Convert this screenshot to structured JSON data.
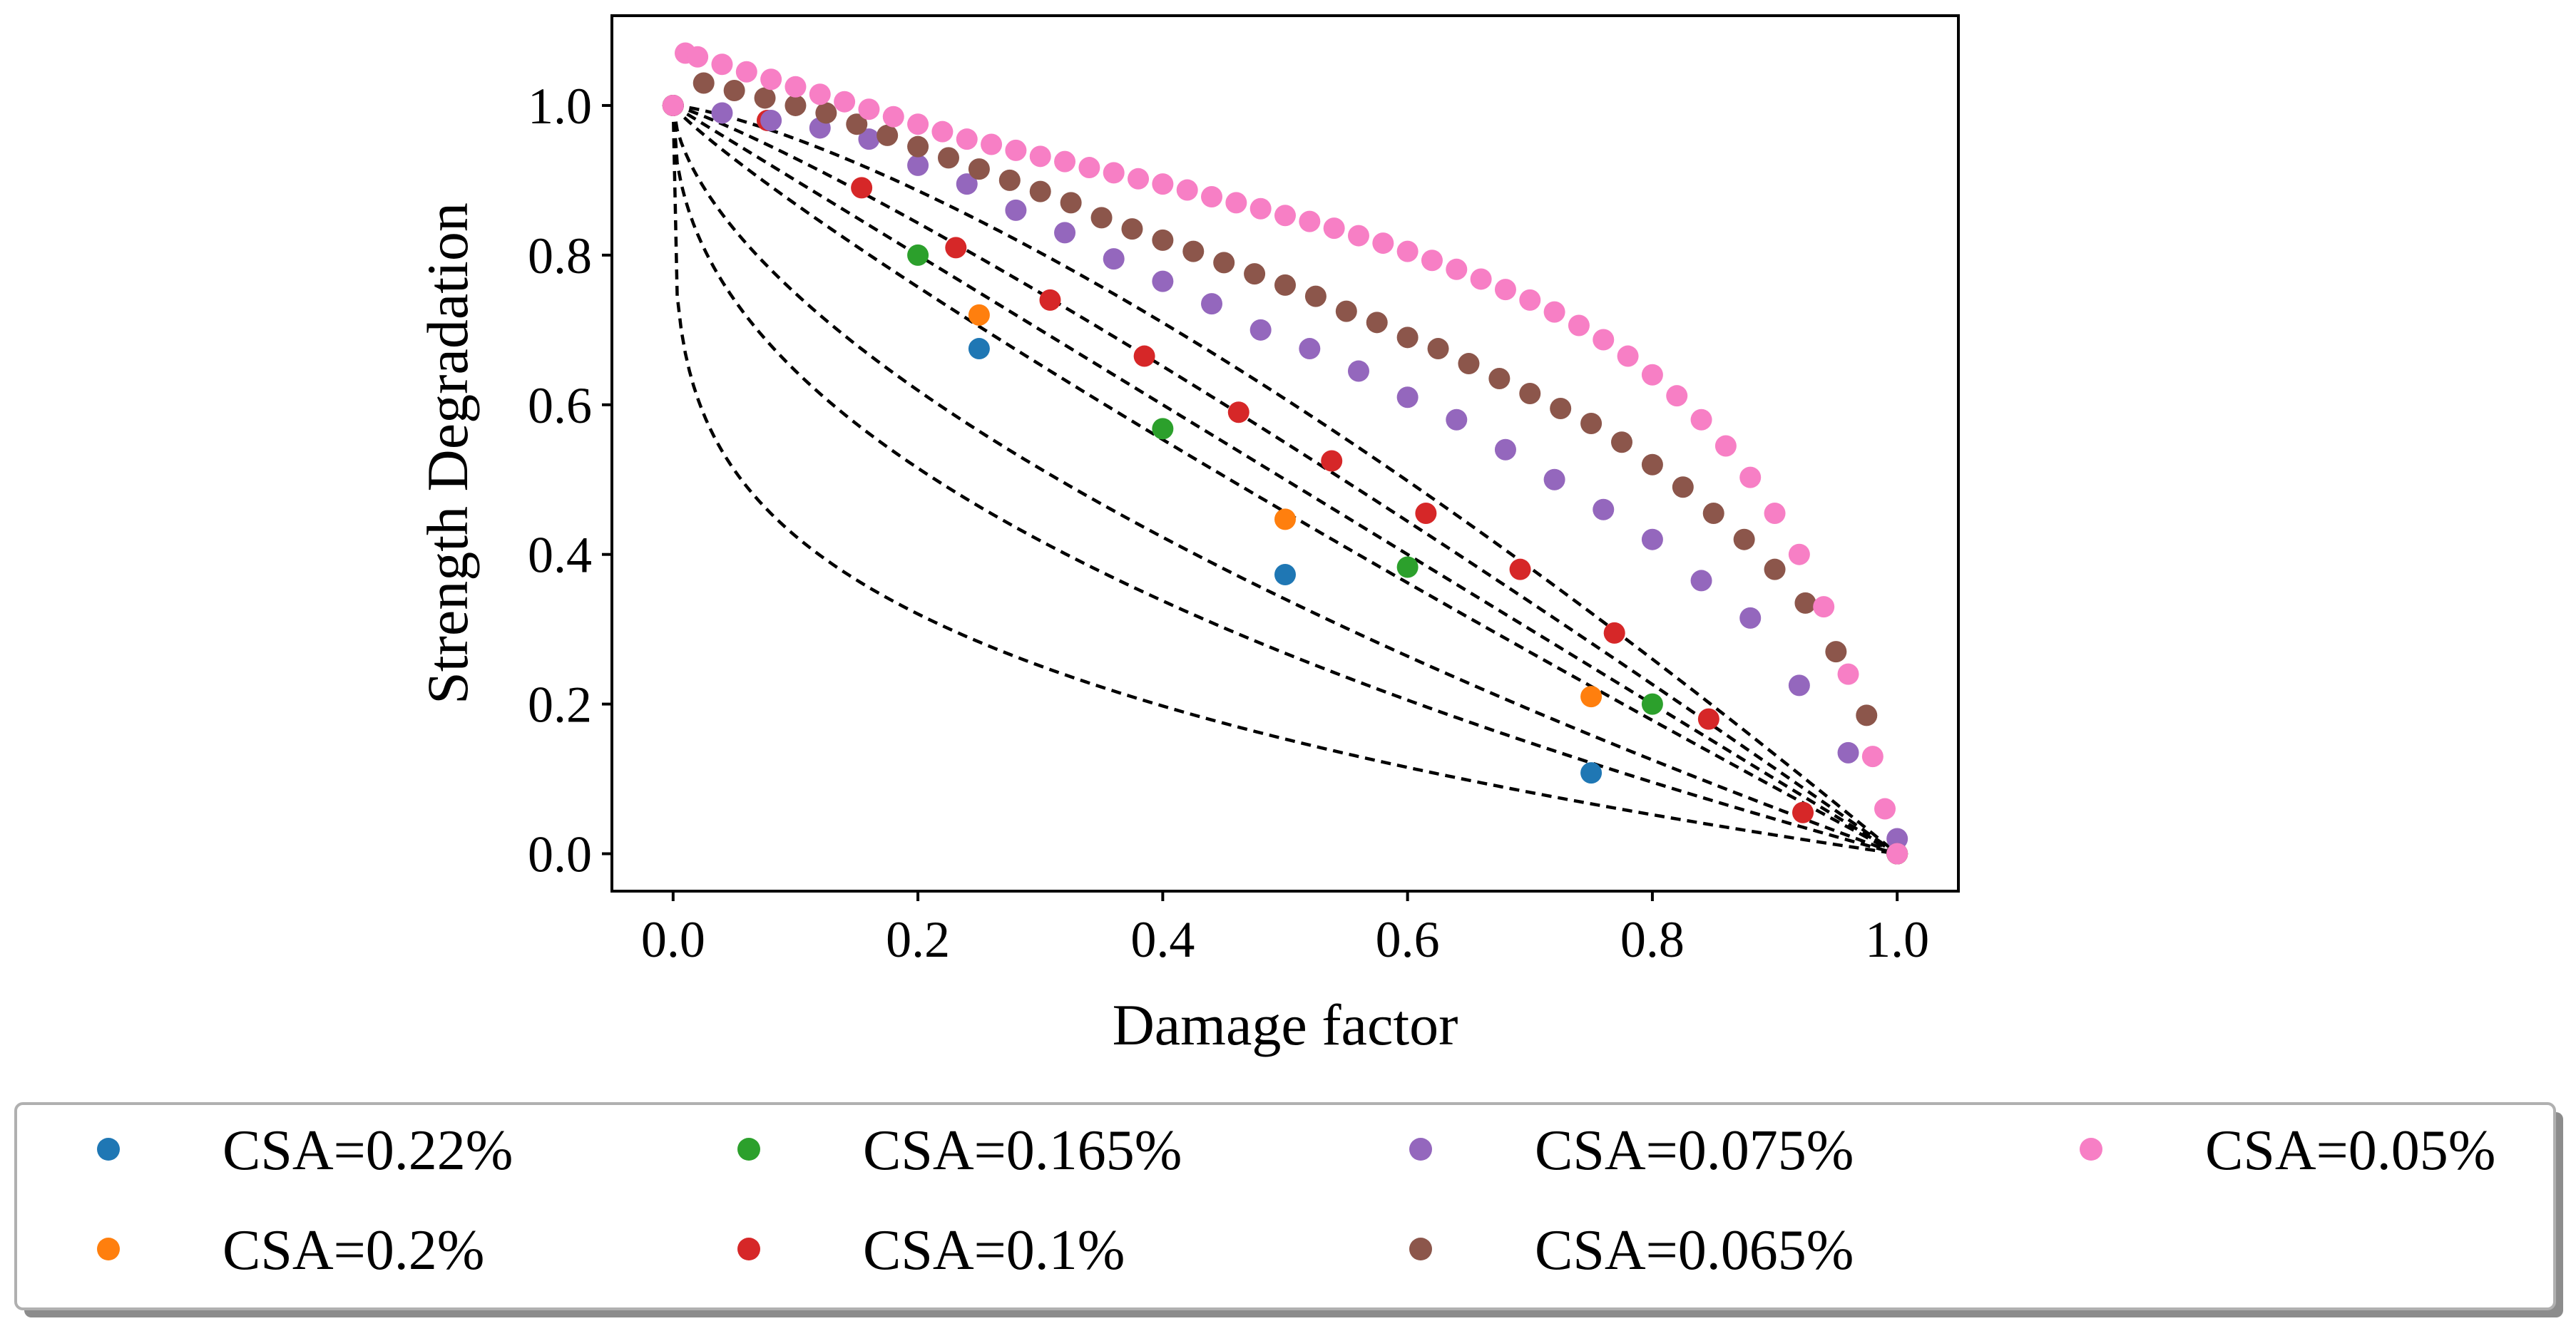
{
  "chart_data": {
    "type": "scatter",
    "title": "",
    "xlabel": "Damage factor",
    "ylabel": "Strength Degradation",
    "xlim": [
      -0.05,
      1.05
    ],
    "ylim": [
      -0.05,
      1.12
    ],
    "xticks": [
      0.0,
      0.2,
      0.4,
      0.6,
      0.8,
      1.0
    ],
    "xtick_labels": [
      "0.0",
      "0.2",
      "0.4",
      "0.6",
      "0.8",
      "1.0"
    ],
    "yticks": [
      0.0,
      0.2,
      0.4,
      0.6,
      0.8,
      1.0
    ],
    "ytick_labels": [
      "0.0",
      "0.2",
      "0.4",
      "0.6",
      "0.8",
      "1.0"
    ],
    "grid": false,
    "legend_position": "bottom",
    "series": [
      {
        "name": "CSA=0.22%",
        "color": "#1f77b4",
        "x": [
          0.0,
          0.25,
          0.5,
          0.75,
          1.0
        ],
        "y": [
          1.0,
          0.675,
          0.373,
          0.108,
          0.0
        ]
      },
      {
        "name": "CSA=0.2%",
        "color": "#ff7f0e",
        "x": [
          0.0,
          0.25,
          0.5,
          0.75,
          1.0
        ],
        "y": [
          1.0,
          0.72,
          0.447,
          0.21,
          0.0
        ]
      },
      {
        "name": "CSA=0.165%",
        "color": "#2ca02c",
        "x": [
          0.0,
          0.2,
          0.4,
          0.6,
          0.8,
          1.0
        ],
        "y": [
          1.0,
          0.8,
          0.568,
          0.383,
          0.2,
          0.0
        ]
      },
      {
        "name": "CSA=0.1%",
        "color": "#d62728",
        "x": [
          0.0,
          0.077,
          0.154,
          0.231,
          0.308,
          0.385,
          0.462,
          0.538,
          0.615,
          0.692,
          0.769,
          0.846,
          0.923,
          1.0
        ],
        "y": [
          1.0,
          0.98,
          0.89,
          0.81,
          0.74,
          0.665,
          0.59,
          0.525,
          0.455,
          0.38,
          0.295,
          0.18,
          0.055,
          0.0
        ]
      },
      {
        "name": "CSA=0.075%",
        "color": "#9467bd",
        "x": [
          0.0,
          0.04,
          0.08,
          0.12,
          0.16,
          0.2,
          0.24,
          0.28,
          0.32,
          0.36,
          0.4,
          0.44,
          0.48,
          0.52,
          0.56,
          0.6,
          0.64,
          0.68,
          0.72,
          0.76,
          0.8,
          0.84,
          0.88,
          0.92,
          0.96,
          1.0
        ],
        "y": [
          1.0,
          0.99,
          0.98,
          0.97,
          0.955,
          0.92,
          0.895,
          0.86,
          0.83,
          0.795,
          0.765,
          0.735,
          0.7,
          0.675,
          0.645,
          0.61,
          0.58,
          0.54,
          0.5,
          0.46,
          0.42,
          0.365,
          0.315,
          0.225,
          0.135,
          0.02
        ]
      },
      {
        "name": "CSA=0.065%",
        "color": "#8c564b",
        "x": [
          0.0,
          0.025,
          0.05,
          0.075,
          0.1,
          0.125,
          0.15,
          0.175,
          0.2,
          0.225,
          0.25,
          0.275,
          0.3,
          0.325,
          0.35,
          0.375,
          0.4,
          0.425,
          0.45,
          0.475,
          0.5,
          0.525,
          0.55,
          0.575,
          0.6,
          0.625,
          0.65,
          0.675,
          0.7,
          0.725,
          0.75,
          0.775,
          0.8,
          0.825,
          0.85,
          0.875,
          0.9,
          0.925,
          0.95,
          0.975,
          1.0
        ],
        "y": [
          1.0,
          1.03,
          1.02,
          1.01,
          1.0,
          0.99,
          0.975,
          0.96,
          0.945,
          0.93,
          0.915,
          0.9,
          0.885,
          0.87,
          0.85,
          0.835,
          0.82,
          0.805,
          0.79,
          0.775,
          0.76,
          0.745,
          0.725,
          0.71,
          0.69,
          0.675,
          0.655,
          0.635,
          0.615,
          0.595,
          0.575,
          0.55,
          0.52,
          0.49,
          0.455,
          0.42,
          0.38,
          0.335,
          0.27,
          0.185,
          0.0
        ]
      },
      {
        "name": "CSA=0.05%",
        "color": "#f77fc5",
        "x": [
          0.0,
          0.01,
          0.02,
          0.04,
          0.06,
          0.08,
          0.1,
          0.12,
          0.14,
          0.16,
          0.18,
          0.2,
          0.22,
          0.24,
          0.26,
          0.28,
          0.3,
          0.32,
          0.34,
          0.36,
          0.38,
          0.4,
          0.42,
          0.44,
          0.46,
          0.48,
          0.5,
          0.52,
          0.54,
          0.56,
          0.58,
          0.6,
          0.62,
          0.64,
          0.66,
          0.68,
          0.7,
          0.72,
          0.74,
          0.76,
          0.78,
          0.8,
          0.82,
          0.84,
          0.86,
          0.88,
          0.9,
          0.92,
          0.94,
          0.96,
          0.98,
          0.99,
          1.0
        ],
        "y": [
          1.0,
          1.07,
          1.065,
          1.055,
          1.045,
          1.035,
          1.025,
          1.015,
          1.005,
          0.995,
          0.985,
          0.975,
          0.965,
          0.955,
          0.948,
          0.94,
          0.932,
          0.925,
          0.917,
          0.91,
          0.902,
          0.895,
          0.887,
          0.878,
          0.87,
          0.862,
          0.853,
          0.845,
          0.836,
          0.826,
          0.816,
          0.805,
          0.793,
          0.781,
          0.768,
          0.754,
          0.74,
          0.724,
          0.706,
          0.687,
          0.665,
          0.64,
          0.612,
          0.58,
          0.545,
          0.503,
          0.455,
          0.4,
          0.33,
          0.24,
          0.13,
          0.06,
          0.0
        ]
      }
    ],
    "fit_curves": {
      "style": "dashed",
      "color": "#000000",
      "x_start": 0.0,
      "y_start": 1.0,
      "x_end": 1.0,
      "y_end": 0.0,
      "exponents": [
        1.35,
        1.15,
        1.0,
        0.88,
        0.6,
        0.45,
        0.24
      ]
    }
  }
}
